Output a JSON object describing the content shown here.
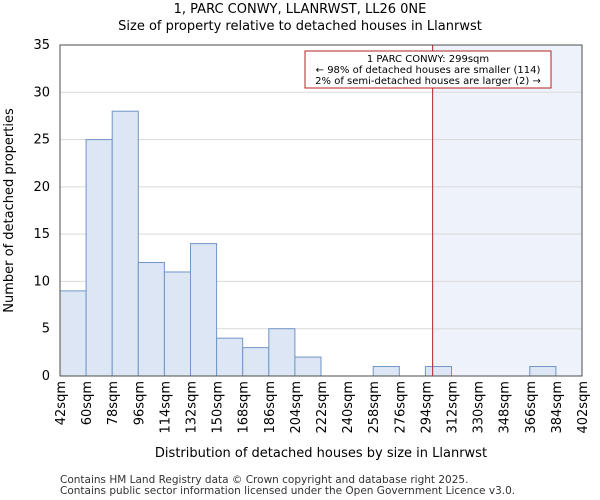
{
  "header": {
    "title": "1, PARC CONWY, LLANRWST, LL26 0NE",
    "subtitle": "Size of property relative to detached houses in Llanrwst"
  },
  "footer": {
    "line1": "Contains HM Land Registry data © Crown copyright and database right 2025.",
    "line2": "Contains public sector information licensed under the Open Government Licence v3.0."
  },
  "chart_data": {
    "type": "bar",
    "title": "Size of property relative to detached houses in Llanrwst",
    "xlabel": "Distribution of detached houses by size in Llanrwst",
    "ylabel": "Number of detached properties",
    "bin_edges": [
      42,
      60,
      78,
      96,
      114,
      132,
      150,
      168,
      186,
      204,
      222,
      240,
      258,
      276,
      294,
      312,
      330,
      348,
      366,
      384,
      402
    ],
    "x_tick_labels": [
      "42sqm",
      "60sqm",
      "78sqm",
      "96sqm",
      "114sqm",
      "132sqm",
      "150sqm",
      "168sqm",
      "186sqm",
      "204sqm",
      "222sqm",
      "240sqm",
      "258sqm",
      "276sqm",
      "294sqm",
      "312sqm",
      "330sqm",
      "348sqm",
      "366sqm",
      "384sqm",
      "402sqm"
    ],
    "values": [
      9,
      25,
      28,
      12,
      11,
      14,
      4,
      3,
      5,
      2,
      0,
      0,
      1,
      0,
      1,
      0,
      0,
      0,
      1,
      0
    ],
    "ylim": [
      0,
      35
    ],
    "y_ticks": [
      0,
      5,
      10,
      15,
      20,
      25,
      30,
      35
    ],
    "grid": "horizontal",
    "property_marker": 299,
    "annotation": {
      "line1": "1 PARC CONWY: 299sqm",
      "line2": "← 98% of detached houses are smaller (114)",
      "line3": "2% of semi-detached houses are larger (2) →"
    },
    "colors": {
      "bar_fill": "#dce6f4",
      "bar_edge": "#6f96c8",
      "marker": "#b22222",
      "highlight": "#eef2fb",
      "grid": "#d9d9d9"
    }
  }
}
